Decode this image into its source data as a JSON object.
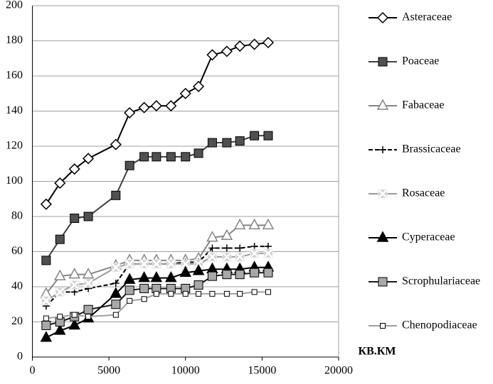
{
  "chart_data": {
    "type": "line",
    "x_label": "КВ.КМ",
    "x": [
      900,
      1800,
      2750,
      3650,
      5450,
      6350,
      7300,
      8100,
      9050,
      10000,
      10850,
      11750,
      12700,
      13550,
      14500,
      15400
    ],
    "xlim": [
      0,
      20000
    ],
    "xticks": [
      0,
      5000,
      10000,
      15000,
      20000
    ],
    "ylim": [
      0,
      200
    ],
    "yticks": [
      0,
      20,
      40,
      60,
      80,
      100,
      120,
      140,
      160,
      180,
      200
    ],
    "grid": true,
    "legend": "right",
    "series": [
      {
        "name": "Asteraceae",
        "color": "#000000",
        "marker": "diamond",
        "marker_fill": "#ffffff",
        "values": [
          87,
          99,
          107,
          113,
          121,
          139,
          142,
          143,
          143,
          150,
          154,
          172,
          174,
          177,
          178,
          179
        ]
      },
      {
        "name": "Poaceae",
        "color": "#404040",
        "marker": "square",
        "marker_fill": "#505050",
        "values": [
          55,
          67,
          79,
          80,
          92,
          109,
          114,
          114,
          114,
          114,
          116,
          122,
          122,
          123,
          126,
          126
        ]
      },
      {
        "name": "Fabaceae",
        "color": "#858585",
        "marker": "triangle",
        "marker_fill": "#ffffff",
        "values": [
          36,
          46,
          47,
          47,
          52,
          55,
          55,
          55,
          55,
          55,
          56,
          68,
          69,
          75,
          75,
          75
        ]
      },
      {
        "name": "Brassicaceae",
        "color": "#000000",
        "marker": "plus",
        "marker_fill": "none",
        "dash": "6,3",
        "values": [
          29,
          37,
          37,
          39,
          42,
          53,
          53,
          53,
          53,
          54,
          54,
          62,
          62,
          62,
          63,
          63
        ]
      },
      {
        "name": "Rosaceae",
        "color": "#9a9a9a",
        "marker": "xsquare",
        "marker_fill": "#d0d0d0",
        "values": [
          32,
          37,
          41,
          42,
          51,
          53,
          53,
          53,
          53,
          53,
          53,
          57,
          57,
          57,
          59,
          59
        ]
      },
      {
        "name": "Cyperaceae",
        "color": "#000000",
        "marker": "triangle",
        "marker_fill": "#000000",
        "values": [
          11,
          15,
          18,
          22,
          36,
          44,
          45,
          45,
          45,
          48,
          49,
          50,
          50,
          50,
          51,
          51
        ]
      },
      {
        "name": "Scrophulariaceae",
        "color": "#1a1a1a",
        "marker": "square",
        "marker_fill": "#a8a8a8",
        "values": [
          18,
          20,
          23,
          27,
          30,
          38,
          39,
          39,
          39,
          39,
          41,
          46,
          47,
          47,
          48,
          48
        ]
      },
      {
        "name": "Chenopodiaceae",
        "color": "#a0a0a0",
        "marker": "smallsquare",
        "marker_fill": "#ffffff",
        "values": [
          22,
          23,
          24,
          23,
          24,
          32,
          33,
          36,
          36,
          36,
          36,
          36,
          36,
          36,
          37,
          37
        ]
      }
    ]
  }
}
